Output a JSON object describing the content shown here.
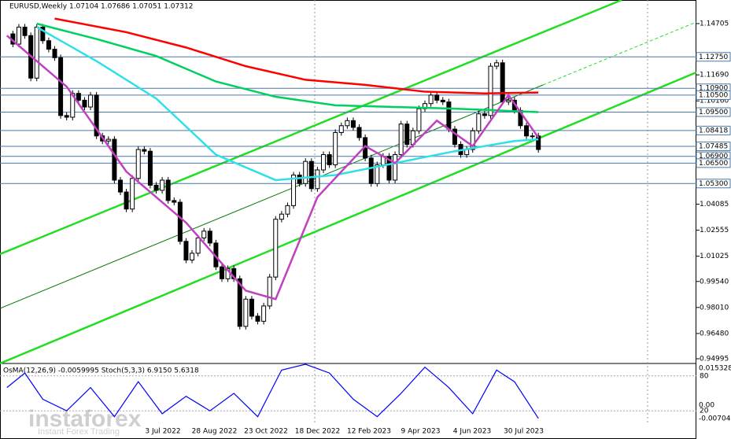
{
  "chart_data": {
    "type": "candlestick",
    "title": "EURUSD,Weekly 1.07104 1.07686 1.07051 1.07312",
    "closes": [
      1.141,
      1.135,
      1.145,
      1.14,
      1.115,
      1.145,
      1.137,
      1.132,
      1.127,
      1.093,
      1.092,
      1.106,
      1.102,
      1.098,
      1.105,
      1.081,
      1.078,
      1.079,
      1.055,
      1.048,
      1.038,
      1.056,
      1.073,
      1.072,
      1.052,
      1.049,
      1.055,
      1.043,
      1.042,
      1.019,
      1.008,
      1.012,
      1.021,
      1.025,
      1.018,
      1.004,
      0.997,
      1.003,
      0.997,
      0.969,
      0.985,
      0.975,
      0.972,
      0.981,
      0.998,
      1.032,
      1.035,
      1.04,
      1.058,
      1.053,
      1.066,
      1.05,
      1.061,
      1.07,
      1.064,
      1.083,
      1.087,
      1.09,
      1.086,
      1.08,
      1.068,
      1.053,
      1.064,
      1.069,
      1.055,
      1.07,
      1.088,
      1.076,
      1.084,
      1.097,
      1.1,
      1.105,
      1.102,
      1.101,
      1.085,
      1.076,
      1.07,
      1.073,
      1.084,
      1.094,
      1.093,
      1.122,
      1.124,
      1.101,
      1.102,
      1.096,
      1.087,
      1.081,
      1.081,
      1.073
    ],
    "categories": [
      "3 Jul 2022",
      "28 Aug 2022",
      "23 Oct 2022",
      "18 Dec 2022",
      "12 Feb 2023",
      "9 Apr 2023",
      "4 Jun 2023",
      "30 Jul 2023"
    ],
    "series": [
      {
        "color": "#ff0000",
        "x": [
          8,
          20,
          30,
          40,
          50,
          60,
          70,
          80,
          89
        ],
        "values": [
          1.15,
          1.142,
          1.133,
          1.122,
          1.114,
          1.111,
          1.107,
          1.106,
          1.1065
        ]
      },
      {
        "color": "#00d060",
        "x": [
          5,
          15,
          25,
          35,
          45,
          55,
          65,
          75,
          89
        ],
        "values": [
          1.147,
          1.138,
          1.128,
          1.113,
          1.104,
          1.099,
          1.098,
          1.097,
          1.095
        ]
      },
      {
        "color": "#30e0e8",
        "x": [
          5,
          15,
          25,
          35,
          45,
          55,
          65,
          75,
          85,
          89
        ],
        "values": [
          1.145,
          1.125,
          1.103,
          1.07,
          1.055,
          1.058,
          1.065,
          1.072,
          1.078,
          1.079
        ]
      },
      {
        "color": "#c040c0",
        "x": [
          0,
          10,
          20,
          30,
          40,
          45,
          52,
          60,
          65,
          72,
          78,
          84,
          89
        ],
        "values": [
          1.14,
          1.11,
          1.06,
          1.03,
          0.99,
          0.985,
          1.045,
          1.075,
          1.065,
          1.09,
          1.075,
          1.105,
          1.08
        ]
      }
    ],
    "ylim": [
      0.94995,
      1.14705
    ],
    "yticks": [
      1.14705,
      {
        "value": 1.1169,
        "label": "1.11690"
      },
      {
        "value": 1.1016,
        "label": "1.10160"
      },
      1.04085,
      1.02555,
      1.01025,
      {
        "value": 0.9954,
        "label": "0.99540"
      },
      {
        "value": 0.9801,
        "label": "0.98010"
      },
      {
        "value": 0.9648,
        "label": "0.96480"
      },
      0.94995
    ],
    "levels": [
      {
        "value": 1.1275,
        "label": "1.12750"
      },
      {
        "value": 1.109,
        "label": "1.10900"
      },
      {
        "value": 1.105,
        "label": "1.10500"
      },
      {
        "value": 1.095,
        "label": "1.09500"
      },
      1.08418,
      1.07485,
      {
        "value": 1.069,
        "label": "1.06900"
      },
      {
        "value": 1.065,
        "label": "1.06500"
      },
      {
        "value": 1.053,
        "label": "1.05300"
      }
    ],
    "indicator": {
      "title": "OsMA(12,26,9) -0.0059995 Stoch(5,3,3) 6.9150 5.6318",
      "ylim": [
        0,
        100
      ],
      "yticks": [
        {
          "value": 80,
          "label": "80"
        },
        {
          "value": 20,
          "label": "20"
        }
      ],
      "axis_labels": [
        "0.0153281",
        "0.00",
        "-0.007046"
      ],
      "color": "#0000ff",
      "x": [
        0,
        3,
        6,
        10,
        14,
        18,
        22,
        26,
        30,
        34,
        38,
        42,
        46,
        50,
        54,
        58,
        62,
        66,
        70,
        74,
        78,
        82,
        85,
        89
      ],
      "values": [
        60,
        85,
        40,
        20,
        60,
        10,
        70,
        15,
        45,
        20,
        50,
        10,
        90,
        100,
        85,
        40,
        10,
        50,
        95,
        60,
        15,
        90,
        70,
        7
      ]
    },
    "watermark": "instaforex",
    "watermark_sub": "Instant Forex Trading"
  }
}
